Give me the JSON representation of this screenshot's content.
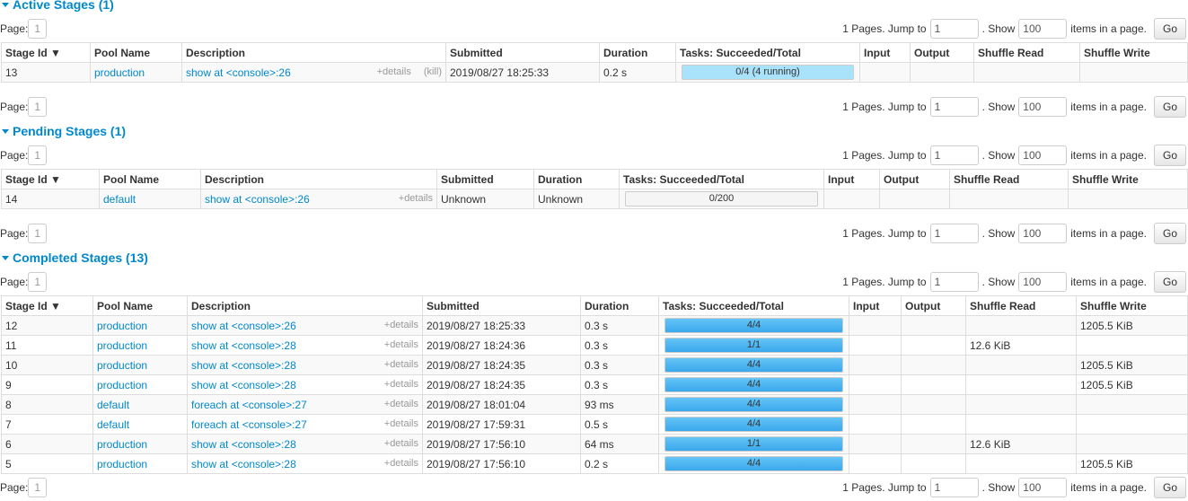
{
  "pager": {
    "page_label": "Page:",
    "page": "1",
    "pages_text": "1 Pages. Jump to",
    "jump": "1",
    "show_label": ". Show",
    "show": "100",
    "items_label": "items in a page.",
    "go": "Go"
  },
  "columns": [
    "Stage Id ▼",
    "Pool Name",
    "Description",
    "Submitted",
    "Duration",
    "Tasks: Succeeded/Total",
    "Input",
    "Output",
    "Shuffle Read",
    "Shuffle Write"
  ],
  "details": "+details",
  "kill": "(kill)",
  "sections": [
    {
      "title": "Active Stages (1)",
      "rows": [
        {
          "stage_id": "13",
          "pool": "production",
          "description": "show at <console>:26",
          "kill": true,
          "submitted": "2019/08/27 18:25:33",
          "duration": "0.2 s",
          "tasks": {
            "label": "0/4 (4 running)",
            "succeeded": 0,
            "running": 4,
            "total": 4
          }
        }
      ]
    },
    {
      "title": "Pending Stages (1)",
      "rows": [
        {
          "stage_id": "14",
          "pool": "default",
          "description": "show at <console>:26",
          "submitted": "Unknown",
          "duration": "Unknown",
          "tasks": {
            "label": "0/200",
            "succeeded": 0,
            "running": 0,
            "total": 200
          }
        }
      ]
    },
    {
      "title": "Completed Stages (13)",
      "rows": [
        {
          "stage_id": "12",
          "pool": "production",
          "description": "show at <console>:26",
          "submitted": "2019/08/27 18:25:33",
          "duration": "0.3 s",
          "tasks": {
            "label": "4/4",
            "succeeded": 4,
            "running": 0,
            "total": 4
          },
          "shuffle_write": "1205.5 KiB"
        },
        {
          "stage_id": "11",
          "pool": "production",
          "description": "show at <console>:28",
          "submitted": "2019/08/27 18:24:36",
          "duration": "0.3 s",
          "tasks": {
            "label": "1/1",
            "succeeded": 1,
            "running": 0,
            "total": 1
          },
          "shuffle_read": "12.6 KiB"
        },
        {
          "stage_id": "10",
          "pool": "production",
          "description": "show at <console>:28",
          "submitted": "2019/08/27 18:24:35",
          "duration": "0.3 s",
          "tasks": {
            "label": "4/4",
            "succeeded": 4,
            "running": 0,
            "total": 4
          },
          "shuffle_write": "1205.5 KiB"
        },
        {
          "stage_id": "9",
          "pool": "production",
          "description": "show at <console>:28",
          "submitted": "2019/08/27 18:24:35",
          "duration": "0.3 s",
          "tasks": {
            "label": "4/4",
            "succeeded": 4,
            "running": 0,
            "total": 4
          },
          "shuffle_write": "1205.5 KiB"
        },
        {
          "stage_id": "8",
          "pool": "default",
          "description": "foreach at <console>:27",
          "submitted": "2019/08/27 18:01:04",
          "duration": "93 ms",
          "tasks": {
            "label": "4/4",
            "succeeded": 4,
            "running": 0,
            "total": 4
          }
        },
        {
          "stage_id": "7",
          "pool": "default",
          "description": "foreach at <console>:27",
          "submitted": "2019/08/27 17:59:31",
          "duration": "0.5 s",
          "tasks": {
            "label": "4/4",
            "succeeded": 4,
            "running": 0,
            "total": 4
          }
        },
        {
          "stage_id": "6",
          "pool": "production",
          "description": "show at <console>:28",
          "submitted": "2019/08/27 17:56:10",
          "duration": "64 ms",
          "tasks": {
            "label": "1/1",
            "succeeded": 1,
            "running": 0,
            "total": 1
          },
          "shuffle_read": "12.6 KiB"
        },
        {
          "stage_id": "5",
          "pool": "production",
          "description": "show at <console>:28",
          "submitted": "2019/08/27 17:56:10",
          "duration": "0.2 s",
          "tasks": {
            "label": "4/4",
            "succeeded": 4,
            "running": 0,
            "total": 4
          },
          "shuffle_write": "1205.5 KiB"
        }
      ]
    }
  ]
}
